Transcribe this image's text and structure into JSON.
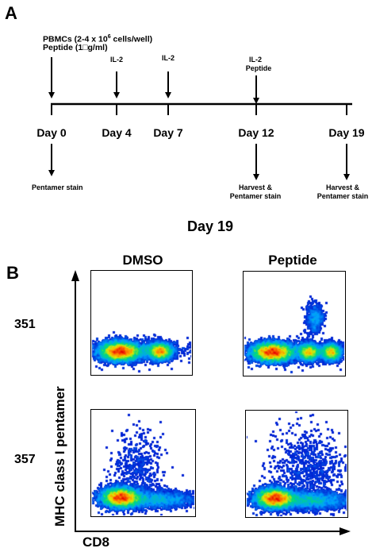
{
  "panel_a": {
    "letter": "A",
    "pbmc_line_main": "PBMCs (2-4 x 10",
    "pbmc_line_sup": "6",
    "pbmc_line_rest": " cells/well)",
    "peptide_line": "Peptide (1□g/ml)",
    "il2_day4": "IL-2",
    "il2_day7": "IL-2",
    "il2_day12": "IL-2",
    "peptide_day12": "Peptide",
    "days": [
      "Day 0",
      "Day 4",
      "Day 7",
      "Day 12",
      "Day 19"
    ],
    "pentamer_stain_day0": "Pentamer stain",
    "harvest_day12_line1": "Harvest &",
    "harvest_day12_line2": "Pentamer stain",
    "harvest_day19_line1": "Harvest &",
    "harvest_day19_line2": "Pentamer stain"
  },
  "panel_b": {
    "letter": "B",
    "title": "Day 19",
    "columns": [
      "DMSO",
      "Peptide"
    ],
    "rows": [
      "351",
      "357"
    ],
    "y_axis_label": "MHC class I pentamer",
    "x_axis_label": "CD8"
  }
}
